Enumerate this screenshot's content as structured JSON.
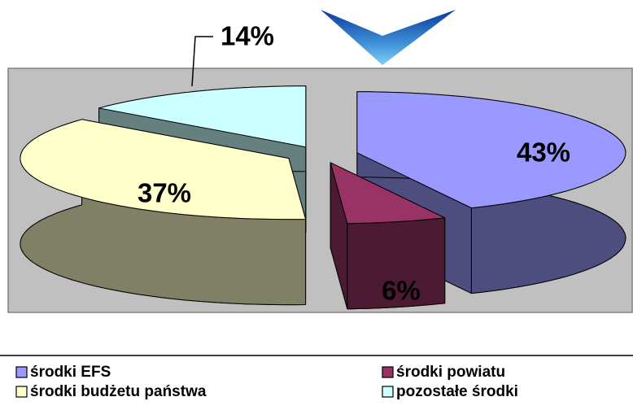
{
  "chart_data": {
    "type": "pie",
    "categories": [
      "środki EFS",
      "środki powiatu",
      "środki budżetu państwa",
      "pozostałe środki"
    ],
    "values": [
      43,
      6,
      37,
      14
    ],
    "value_labels": [
      "43%",
      "6%",
      "37%",
      "14%"
    ],
    "colors": [
      "#9999ff",
      "#993366",
      "#ffffcc",
      "#ccffff"
    ]
  }
}
